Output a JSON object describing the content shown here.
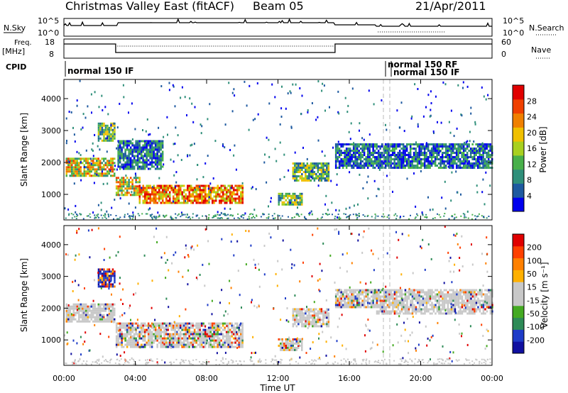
{
  "header": {
    "title": "Christmas Valley East (fitACF)",
    "beam": "Beam 05",
    "date": "21/Apr/2011"
  },
  "aux_panels": {
    "nsky_label": "N.Sky",
    "nsearch_label": "N.Search",
    "nsky_ticks": [
      "10^5",
      "10^0"
    ],
    "nsearch_ticks": [
      "10^5",
      "10^0"
    ],
    "freq_label_1": "Freq.",
    "freq_label_2": "[MHz]",
    "freq_ticks": [
      "18",
      "8"
    ],
    "nave_label": "Nave",
    "nave_ticks": [
      "60",
      "0"
    ],
    "cpid_label": "CPID",
    "cpid_entries": [
      "normal 150 IF",
      "normal 150 RF",
      "normal 150 IF"
    ]
  },
  "colors": {
    "power_scale": [
      "#0000ee",
      "#1e5aa0",
      "#2f8f7a",
      "#48b04a",
      "#a8d020",
      "#f0c000",
      "#f08000",
      "#f04000",
      "#e00000"
    ],
    "velocity_scale": [
      "#e00000",
      "#ff4000",
      "#ff8000",
      "#ffb000",
      "#c8c8c8",
      "#c8c8c8",
      "#44aa22",
      "#2e8b57",
      "#1e3cc8",
      "#1010a0"
    ]
  },
  "chart_data": [
    {
      "type": "heatmap",
      "name": "power",
      "ylabel": "Slant Range [km]",
      "xlabel": "Time UT",
      "yticks": [
        "1000",
        "2000",
        "3000",
        "4000"
      ],
      "ylim": [
        200,
        4600
      ],
      "xticks": [
        "00:00",
        "04:00",
        "08:00",
        "12:00",
        "16:00",
        "20:00",
        "00:00"
      ],
      "xlim_hours": [
        0,
        24
      ],
      "colorbar": {
        "label": "Power [dB]",
        "ticks": [
          "4",
          "8",
          "12",
          "16",
          "20",
          "24",
          "28"
        ],
        "range": [
          0,
          30
        ]
      },
      "regions": [
        {
          "t": [
            0.1,
            2.85
          ],
          "r": [
            1550,
            2150
          ],
          "intensity": "high"
        },
        {
          "t": [
            1.9,
            2.8
          ],
          "r": [
            2700,
            3250
          ],
          "intensity": "medium"
        },
        {
          "t": [
            2.9,
            4.2
          ],
          "r": [
            950,
            1550
          ],
          "intensity": "high"
        },
        {
          "t": [
            4.2,
            10.0
          ],
          "r": [
            750,
            1300
          ],
          "intensity": "very high"
        },
        {
          "t": [
            3.0,
            5.5
          ],
          "r": [
            1800,
            2700
          ],
          "intensity": "low"
        },
        {
          "t": [
            12.0,
            13.3
          ],
          "r": [
            650,
            1050
          ],
          "intensity": "medium"
        },
        {
          "t": [
            12.8,
            14.8
          ],
          "r": [
            1450,
            2000
          ],
          "intensity": "medium"
        },
        {
          "t": [
            15.2,
            24.0
          ],
          "r": [
            1800,
            2600
          ],
          "intensity": "low"
        }
      ]
    },
    {
      "type": "heatmap",
      "name": "velocity",
      "ylabel": "Slant Range [km]",
      "xlabel": "Time UT",
      "yticks": [
        "1000",
        "2000",
        "3000",
        "4000"
      ],
      "ylim": [
        200,
        4600
      ],
      "xticks": [
        "00:00",
        "04:00",
        "08:00",
        "12:00",
        "16:00",
        "20:00",
        "00:00"
      ],
      "xlim_hours": [
        0,
        24
      ],
      "colorbar": {
        "label": "Velocity [m s⁻¹]",
        "ticks": [
          "200",
          "100",
          "50",
          "15",
          "-15",
          "-50",
          "-100",
          "-200"
        ],
        "range": [
          -250,
          250
        ]
      },
      "regions": [
        {
          "t": [
            0.1,
            2.85
          ],
          "r": [
            1550,
            2150
          ],
          "velocity": "near zero"
        },
        {
          "t": [
            1.9,
            2.8
          ],
          "r": [
            2700,
            3250
          ],
          "velocity": "positive"
        },
        {
          "t": [
            2.9,
            10.0
          ],
          "r": [
            750,
            1550
          ],
          "velocity": "near zero / mixed"
        },
        {
          "t": [
            12.0,
            13.3
          ],
          "r": [
            650,
            1050
          ],
          "velocity": "mixed"
        },
        {
          "t": [
            12.8,
            14.8
          ],
          "r": [
            1450,
            2000
          ],
          "velocity": "near zero"
        },
        {
          "t": [
            15.2,
            17.5
          ],
          "r": [
            2000,
            2600
          ],
          "velocity": "mixed"
        },
        {
          "t": [
            17.5,
            24.0
          ],
          "r": [
            1800,
            2600
          ],
          "velocity": "near zero"
        }
      ]
    }
  ]
}
